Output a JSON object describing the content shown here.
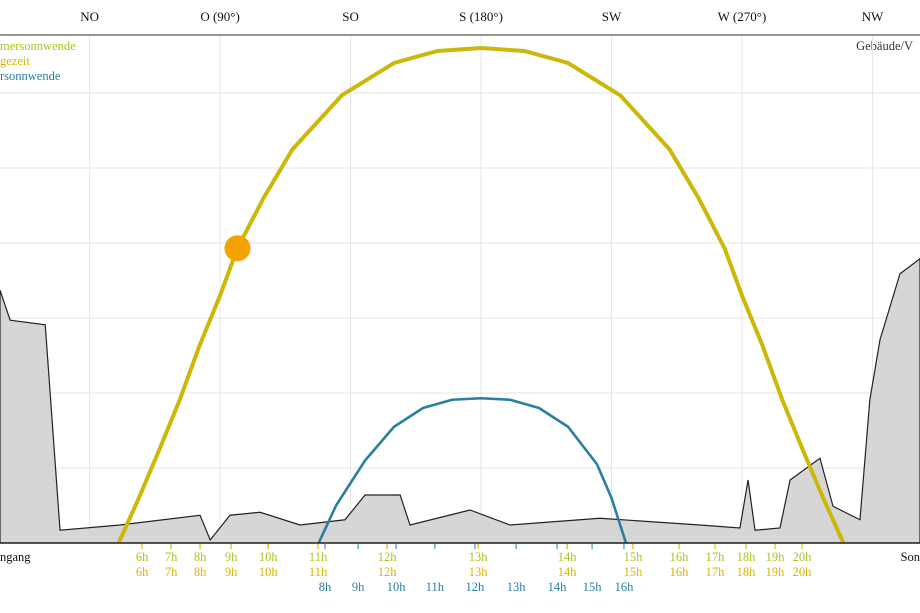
{
  "chart_data": {
    "type": "sunpath",
    "xlim": [
      14.1,
      331.4
    ],
    "ylim": [
      0,
      68
    ],
    "xticks": [
      {
        "value": 45,
        "label": "NO"
      },
      {
        "value": 90,
        "label": "O (90°)"
      },
      {
        "value": 135,
        "label": "SO"
      },
      {
        "value": 180,
        "label": "S (180°)"
      },
      {
        "value": 225,
        "label": "SW"
      },
      {
        "value": 270,
        "label": "W (270°)"
      },
      {
        "value": 315,
        "label": "NW"
      }
    ],
    "ygrid_lines": [
      10,
      20,
      30,
      40,
      50,
      60
    ],
    "corner_left": "ngang",
    "corner_right": "Son",
    "top_right_label": "Gebäude/V",
    "series": [
      {
        "name": "mersonnwende",
        "color": "#a9c41a",
        "x": [
          55,
          62,
          69,
          76,
          83,
          90,
          96,
          105,
          115,
          132,
          150,
          165,
          180,
          195,
          210,
          228,
          245,
          255,
          264,
          270,
          277,
          284,
          291,
          298,
          305
        ],
        "values": [
          0,
          6,
          12.4,
          19,
          26.4,
          33,
          39.3,
          46,
          52.5,
          59.7,
          64,
          65.6,
          66,
          65.6,
          64,
          59.7,
          52.5,
          46,
          39.3,
          33,
          26.4,
          19,
          12.4,
          6,
          0
        ],
        "hour_labels": [
          "6h",
          "7h",
          "8h",
          "9h",
          "10h",
          "11h",
          "12h",
          "13h",
          "14h",
          "15h",
          "16h",
          "17h",
          "18h",
          "19h",
          "20h"
        ],
        "hour_az": [
          63.1,
          73.1,
          83.1,
          93.8,
          106.6,
          123.8,
          147.6,
          179,
          209.7,
          232.4,
          248.3,
          260.7,
          271.4,
          281.4,
          290.7
        ]
      },
      {
        "name": "gezeit",
        "color": "#dcb200",
        "x": [
          55,
          62,
          69,
          76,
          83,
          90,
          96,
          105,
          115,
          132,
          150,
          165,
          180,
          195,
          210,
          228,
          245,
          255,
          264,
          270,
          277,
          284,
          291,
          298,
          305
        ],
        "values": [
          0,
          6,
          12.4,
          19,
          26.4,
          33,
          39.3,
          46,
          52.5,
          59.7,
          64,
          65.6,
          66,
          65.6,
          64,
          59.7,
          52.5,
          46,
          39.3,
          33,
          26.4,
          19,
          12.4,
          6,
          0
        ],
        "hour_labels": [
          "6h",
          "7h",
          "8h",
          "9h",
          "10h",
          "11h",
          "12h",
          "13h",
          "14h",
          "15h",
          "16h",
          "17h",
          "18h",
          "19h",
          "20h"
        ],
        "hour_az": [
          63.1,
          73.1,
          83.1,
          93.8,
          106.6,
          123.8,
          147.6,
          179,
          209.7,
          232.4,
          248.3,
          260.7,
          271.4,
          281.4,
          290.7
        ]
      },
      {
        "name": "rsonnwende",
        "color": "#2a7f9e",
        "x": [
          124,
          130,
          140,
          150,
          160,
          170,
          180,
          190,
          200,
          210,
          220,
          225,
          230
        ],
        "values": [
          0,
          5,
          11,
          15.5,
          18,
          19.1,
          19.3,
          19.1,
          18,
          15.5,
          10.5,
          6,
          0
        ],
        "hour_labels": [
          "8h",
          "9h",
          "10h",
          "11h",
          "12h",
          "13h",
          "14h",
          "15h",
          "16h"
        ],
        "hour_az": [
          126.2,
          137.6,
          150.7,
          164.1,
          177.9,
          192.1,
          206.2,
          218.3,
          229.3
        ]
      }
    ],
    "horizon": {
      "color": "#d6d6d6",
      "x": [
        14.1,
        17.6,
        29.7,
        34.8,
        55.5,
        83.1,
        86.6,
        93.4,
        103.8,
        117.6,
        133.1,
        140,
        152.1,
        155.5,
        176.2,
        190,
        221,
        255.5,
        269.3,
        272.1,
        274.5,
        283.1,
        286.6,
        296.9,
        301.4,
        310.7,
        314.1,
        317.6,
        324.5,
        331.4
      ],
      "values": [
        33.7,
        29.7,
        29.1,
        1.7,
        2.4,
        3.7,
        0.4,
        3.7,
        4.1,
        2.4,
        3.1,
        6.4,
        6.4,
        2.4,
        4.4,
        2.4,
        3.3,
        2.4,
        2,
        8.4,
        1.7,
        2,
        8.4,
        11.3,
        4.9,
        3.1,
        19.1,
        27.1,
        35.9,
        37.9
      ]
    },
    "sun": {
      "x": 96,
      "value": 39.3,
      "color": "#f5a300"
    }
  }
}
